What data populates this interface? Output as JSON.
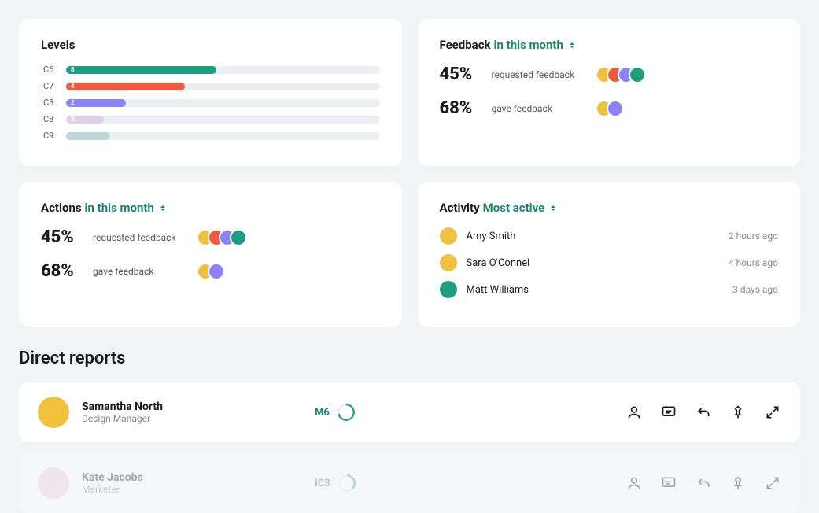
{
  "levels": {
    "title": "Levels",
    "track_bg": "#edeef2",
    "rows": [
      {
        "label": "IC6",
        "value": 8,
        "pct": 48,
        "color": "#1e9e80"
      },
      {
        "label": "IC7",
        "value": 4,
        "pct": 38,
        "color": "#f0593e"
      },
      {
        "label": "IC3",
        "value": 2,
        "pct": 19,
        "color": "#8b83fb"
      },
      {
        "label": "IC8",
        "value": 2,
        "pct": 12,
        "color": "#e0d1ea"
      },
      {
        "label": "IC9",
        "value": "",
        "pct": 14,
        "color": "#bcd7d9"
      }
    ]
  },
  "feedback": {
    "title_prefix": "Feedback",
    "title_highlight": "in this month",
    "stats": [
      {
        "pct": "45%",
        "label": "requested feedback",
        "avatars": [
          "#f0c23c",
          "#f0593e",
          "#8b83fb",
          "#1e9e80"
        ]
      },
      {
        "pct": "68%",
        "label": "gave feedback",
        "avatars": [
          "#f0c23c",
          "#8b83fb"
        ]
      }
    ]
  },
  "actions": {
    "title_prefix": "Actions",
    "title_highlight": "in this month",
    "stats": [
      {
        "pct": "45%",
        "label": "requested feedback",
        "avatars": [
          "#f0c23c",
          "#f0593e",
          "#8b83fb",
          "#1e9e80"
        ]
      },
      {
        "pct": "68%",
        "label": "gave feedback",
        "avatars": [
          "#f0c23c",
          "#8b83fb"
        ]
      }
    ]
  },
  "activity": {
    "title_prefix": "Activity",
    "title_highlight": "Most active",
    "rows": [
      {
        "name": "Amy Smith",
        "time": "2 hours ago",
        "color": "#f0c23c"
      },
      {
        "name": "Sara O'Connel",
        "time": "4 hours ago",
        "color": "#f0c23c"
      },
      {
        "name": "Matt Williams",
        "time": "3 days ago",
        "color": "#1e9e80"
      }
    ]
  },
  "direct_reports": {
    "title": "Direct reports",
    "rows": [
      {
        "name": "Samantha North",
        "role": "Design Manager",
        "level": "M6",
        "avatar": "#f0c23c",
        "ring_pct": 72,
        "ring_color": "#1e9e80",
        "faded": false
      },
      {
        "name": "Kate Jacobs",
        "role": "Marketer",
        "level": "IC3",
        "avatar": "#e8cfd8",
        "ring_pct": 40,
        "ring_color": "#1e9e80",
        "faded": true
      }
    ],
    "action_icons": [
      "person",
      "comment",
      "return",
      "pin",
      "expand"
    ]
  },
  "colors": {
    "page_bg": "#f1f3f5",
    "card_bg": "#ffffff",
    "text_primary": "#1a1a1a",
    "text_secondary": "#888888",
    "accent": "#178571"
  }
}
